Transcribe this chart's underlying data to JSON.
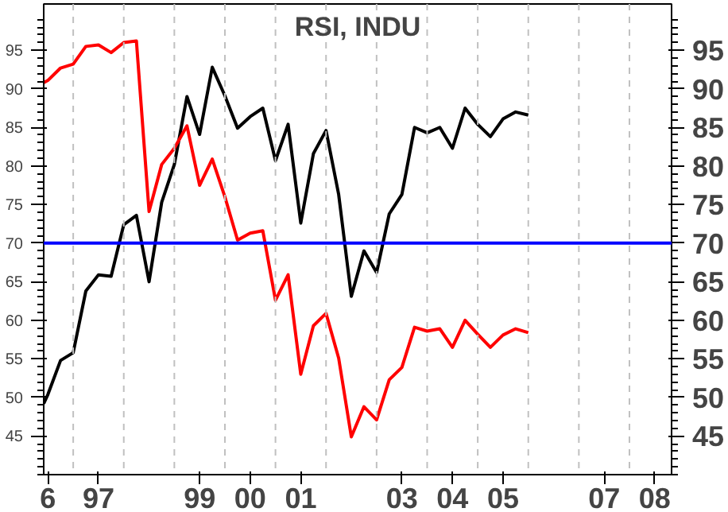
{
  "chart_data": {
    "type": "line",
    "title": "RSI, INDU",
    "x": [
      "1996-06",
      "1996-07",
      "1996-10",
      "1997-01",
      "1997-04",
      "1997-07",
      "1997-10",
      "1998-01",
      "1998-04",
      "1998-07",
      "1998-10",
      "1999-01",
      "1999-04",
      "1999-07",
      "1999-10",
      "2000-01",
      "2000-04",
      "2000-07",
      "2000-10",
      "2001-01",
      "2001-04",
      "2001-07",
      "2001-10",
      "2002-01",
      "2002-04",
      "2002-07",
      "2002-10",
      "2003-01",
      "2003-04",
      "2003-07",
      "2003-10",
      "2004-01",
      "2004-04",
      "2004-07",
      "2004-10",
      "2005-01",
      "2005-04",
      "2005-07",
      "2005-10",
      "2006-01"
    ],
    "series": [
      {
        "color": "#000000",
        "values": [
          49.2,
          50.4,
          54.8,
          55.8,
          63.8,
          65.9,
          65.7,
          72.4,
          73.6,
          65.0,
          75.3,
          80.2,
          89.0,
          84.1,
          92.8,
          89.1,
          84.9,
          86.4,
          87.5,
          80.7,
          85.4,
          72.6,
          81.6,
          84.6,
          76.3,
          63.1,
          69.0,
          66.2,
          73.8,
          76.3,
          85.0,
          84.3,
          85.0,
          82.3,
          87.5,
          85.4,
          83.8,
          86.1,
          87.0,
          86.6
        ]
      },
      {
        "color": "#ff0000",
        "values": [
          90.8,
          91.1,
          92.7,
          93.2,
          95.5,
          95.7,
          94.7,
          96.0,
          96.2,
          74.1,
          80.2,
          82.3,
          85.2,
          77.5,
          80.9,
          76.0,
          70.4,
          71.3,
          71.6,
          62.6,
          65.9,
          53.0,
          59.3,
          60.9,
          55.1,
          44.9,
          48.8,
          47.1,
          52.3,
          53.9,
          59.1,
          58.6,
          58.9,
          56.5,
          60.0,
          58.2,
          56.5,
          58.1,
          58.9,
          58.4
        ]
      }
    ],
    "xlim": [
      "1996-06",
      "2008-11"
    ],
    "xticks": [
      {
        "value": "1996-07",
        "label": "6"
      },
      {
        "value": "1997-07",
        "label": "97"
      },
      {
        "value": "1999-07",
        "label": "99"
      },
      {
        "value": "2000-07",
        "label": "00"
      },
      {
        "value": "2001-07",
        "label": "01"
      },
      {
        "value": "2003-07",
        "label": "03"
      },
      {
        "value": "2004-07",
        "label": "04"
      },
      {
        "value": "2005-07",
        "label": "05"
      },
      {
        "value": "2007-07",
        "label": "07"
      },
      {
        "value": "2008-07",
        "label": "08"
      }
    ],
    "ylim": [
      40,
      101
    ],
    "yticks": [
      45,
      50,
      55,
      60,
      65,
      70,
      75,
      80,
      85,
      90,
      95
    ],
    "y2lim": [
      40,
      101
    ],
    "y2ticks": [
      45,
      50,
      55,
      60,
      65,
      70,
      75,
      80,
      85,
      90,
      95
    ],
    "ref_lines": [
      {
        "axis": "y",
        "value": 70,
        "color": "#0000ff",
        "line_style": "solid"
      },
      {
        "axis": "x",
        "value": "1997",
        "color": "#c0c0c0",
        "line_style": "dashed"
      },
      {
        "axis": "x",
        "value": "1998",
        "color": "#c0c0c0",
        "line_style": "dashed"
      },
      {
        "axis": "x",
        "value": "1999",
        "color": "#c0c0c0",
        "line_style": "dashed"
      },
      {
        "axis": "x",
        "value": "2000",
        "color": "#c0c0c0",
        "line_style": "dashed"
      },
      {
        "axis": "x",
        "value": "2001",
        "color": "#c0c0c0",
        "line_style": "dashed"
      },
      {
        "axis": "x",
        "value": "2002",
        "color": "#c0c0c0",
        "line_style": "dashed"
      },
      {
        "axis": "x",
        "value": "2003",
        "color": "#c0c0c0",
        "line_style": "dashed"
      },
      {
        "axis": "x",
        "value": "2004",
        "color": "#c0c0c0",
        "line_style": "dashed"
      },
      {
        "axis": "x",
        "value": "2005",
        "color": "#c0c0c0",
        "line_style": "dashed"
      },
      {
        "axis": "x",
        "value": "2006",
        "color": "#c0c0c0",
        "line_style": "dashed"
      },
      {
        "axis": "x",
        "value": "2007",
        "color": "#c0c0c0",
        "line_style": "dashed"
      },
      {
        "axis": "x",
        "value": "2008",
        "color": "#c0c0c0",
        "line_style": "dashed"
      }
    ],
    "grid": false,
    "marker": "none",
    "line_style": "solid"
  }
}
